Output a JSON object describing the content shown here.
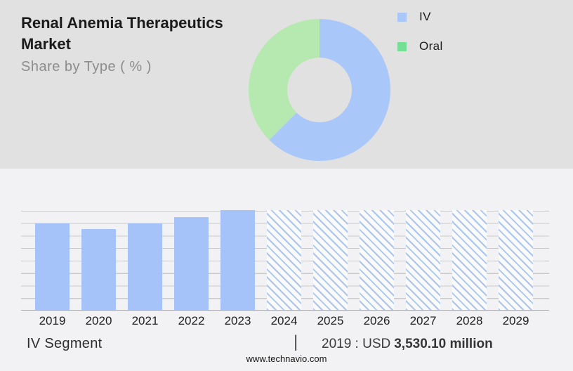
{
  "page": {
    "site_url": "www.technavio.com"
  },
  "header": {
    "title": "Renal Anemia Therapeutics Market",
    "subtitle": "Share by Type ( % )"
  },
  "colors": {
    "top_background": "#e1e1e1",
    "bottom_background": "#f2f2f4",
    "bar_blue": "#a5c3f8",
    "hatch_stripe_blue": "#a9c6f3",
    "donut_blue": "#a9c7f8",
    "donut_green": "#b5e9af",
    "legend_green": "#74df95",
    "gridline": "#c9c9c9"
  },
  "chart_data": [
    {
      "type": "pie",
      "subtype": "donut",
      "title": "Share by Type ( % )",
      "legend_position": "right",
      "value_labels_shown": false,
      "series": [
        {
          "name": "IV",
          "value": 62.5,
          "color": "#a9c7f8",
          "legend_color": "#a9c7f8"
        },
        {
          "name": "Oral",
          "value": 37.5,
          "color": "#b5e9af",
          "legend_color": "#74df95"
        }
      ]
    },
    {
      "type": "bar",
      "categories": [
        "2019",
        "2020",
        "2021",
        "2022",
        "2023",
        "2024",
        "2025",
        "2026",
        "2027",
        "2028",
        "2029"
      ],
      "values": [
        3530.1,
        3300,
        3530,
        3790,
        4075,
        4075,
        4075,
        4075,
        4075,
        4075,
        4075
      ],
      "unit": "USD million",
      "ylim": [
        0,
        4075
      ],
      "gridlines": 9,
      "grid": true,
      "forecast_start_index": 5,
      "labeled_point": {
        "category": "2019",
        "label": "2019 : USD 3,530.10 million"
      },
      "xlabel": "",
      "ylabel": ""
    }
  ],
  "footer": {
    "segment_label": "IV Segment",
    "divider": "|",
    "value_prefix": "2019 : USD",
    "value_bold": "3,530.10 million"
  }
}
